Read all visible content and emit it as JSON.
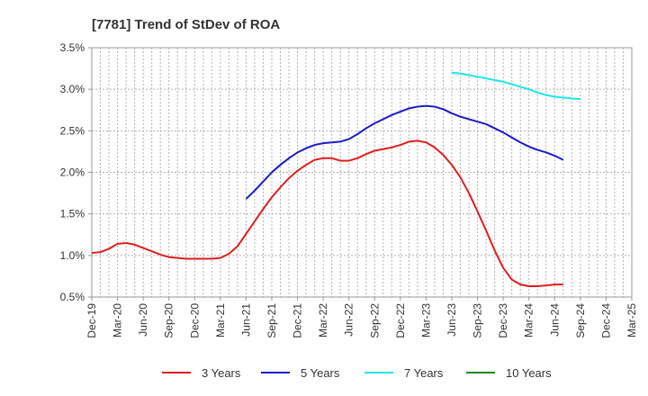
{
  "chart_data": {
    "type": "line",
    "title": "[7781]  Trend of StDev of ROA",
    "xlabel": "",
    "ylabel": "",
    "x_tick_labels": [
      "Dec-19",
      "Mar-20",
      "Jun-20",
      "Sep-20",
      "Dec-20",
      "Mar-21",
      "Jun-21",
      "Sep-21",
      "Dec-21",
      "Mar-22",
      "Jun-22",
      "Sep-22",
      "Dec-22",
      "Mar-23",
      "Jun-23",
      "Sep-23",
      "Dec-23",
      "Mar-24",
      "Jun-24",
      "Sep-24",
      "Dec-24",
      "Mar-25"
    ],
    "y_tick_labels": [
      "3.5%",
      "3.0%",
      "2.5%",
      "2.0%",
      "1.5%",
      "1.0%",
      "0.5%"
    ],
    "y_ticks": [
      3.5,
      3.0,
      2.5,
      2.0,
      1.5,
      1.0,
      0.5
    ],
    "ylim": [
      0.5,
      3.5
    ],
    "grid": true,
    "legend_position": "bottom",
    "series": [
      {
        "name": "3 Years",
        "color": "#dd1f1f",
        "start": "Dec-19",
        "values": [
          1.03,
          1.04,
          1.08,
          1.14,
          1.15,
          1.13,
          1.09,
          1.05,
          1.01,
          0.98,
          0.97,
          0.96,
          0.96,
          0.96,
          0.96,
          0.97,
          1.02,
          1.11,
          1.26,
          1.41,
          1.56,
          1.7,
          1.82,
          1.93,
          2.02,
          2.09,
          2.15,
          2.17,
          2.17,
          2.14,
          2.14,
          2.17,
          2.22,
          2.26,
          2.28,
          2.3,
          2.33,
          2.37,
          2.38,
          2.36,
          2.3,
          2.21,
          2.09,
          1.94,
          1.75,
          1.53,
          1.3,
          1.06,
          0.85,
          0.71,
          0.65,
          0.63,
          0.63,
          0.64,
          0.65,
          0.65
        ]
      },
      {
        "name": "5 Years",
        "color": "#1a1acc",
        "start": "Jun-21",
        "values": [
          1.68,
          1.78,
          1.89,
          2.0,
          2.09,
          2.17,
          2.24,
          2.29,
          2.33,
          2.35,
          2.36,
          2.37,
          2.4,
          2.46,
          2.53,
          2.59,
          2.64,
          2.69,
          2.73,
          2.77,
          2.79,
          2.8,
          2.79,
          2.76,
          2.71,
          2.67,
          2.64,
          2.61,
          2.58,
          2.53,
          2.48,
          2.42,
          2.36,
          2.31,
          2.27,
          2.24,
          2.2,
          2.15
        ]
      },
      {
        "name": "7 Years",
        "color": "#22e6e6",
        "start": "Jun-23",
        "values": [
          3.2,
          3.19,
          3.17,
          3.15,
          3.13,
          3.11,
          3.09,
          3.06,
          3.03,
          3.0,
          2.96,
          2.93,
          2.91,
          2.9,
          2.89,
          2.88
        ]
      },
      {
        "name": "10 Years",
        "color": "#1d8a1d",
        "start": "Dec-24",
        "values": []
      }
    ]
  }
}
